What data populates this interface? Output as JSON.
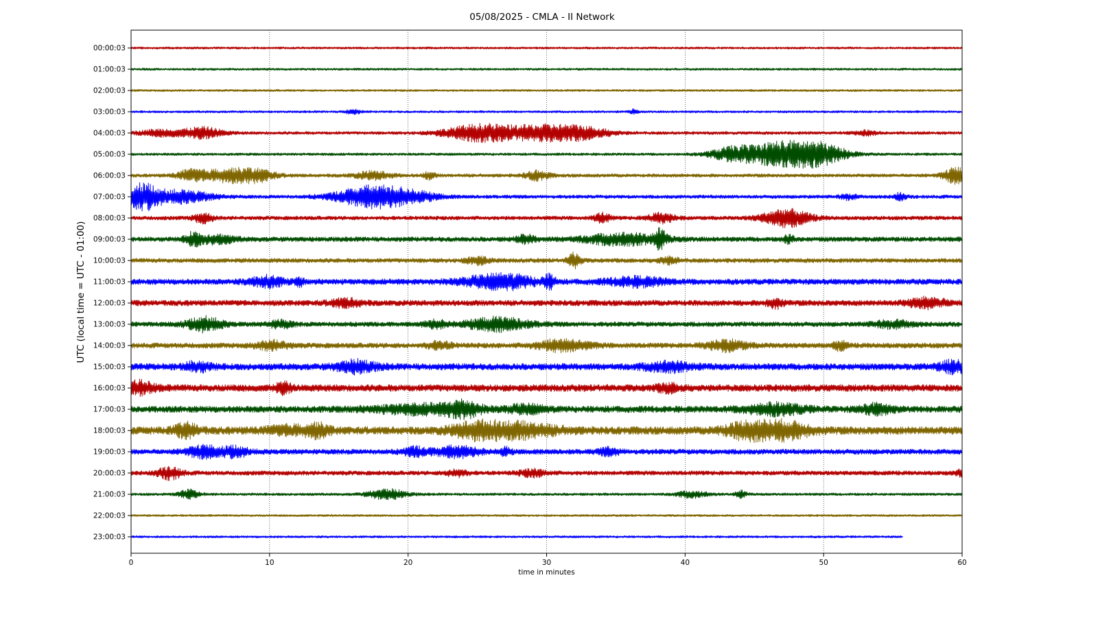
{
  "chart_data": {
    "type": "line",
    "title": "05/08/2025 - CMLA - II Network",
    "xlabel": "time in minutes",
    "ylabel": "UTC (local time = UTC - 01:00)",
    "xlim": [
      0,
      60
    ],
    "x_ticks": [
      0,
      10,
      20,
      30,
      40,
      50,
      60
    ],
    "x_tick_labels": [
      "0",
      "10",
      "20",
      "30",
      "40",
      "50",
      "60"
    ],
    "grid": "vertical dotted at x ticks",
    "series_colors": [
      "#b30000",
      "#004d00",
      "#806600",
      "#0000ff"
    ],
    "rows": [
      {
        "label": "00:00:03",
        "color": "#b30000",
        "end_minute": 60,
        "noise": 0.5,
        "events": []
      },
      {
        "label": "01:00:03",
        "color": "#004d00",
        "end_minute": 60,
        "noise": 0.5,
        "events": []
      },
      {
        "label": "02:00:03",
        "color": "#806600",
        "end_minute": 60,
        "noise": 0.5,
        "events": []
      },
      {
        "label": "03:00:03",
        "color": "#0000ff",
        "end_minute": 60,
        "noise": 0.5,
        "events": [
          [
            16,
            0.4,
            1.0
          ],
          [
            36.3,
            0.2,
            1.0
          ]
        ]
      },
      {
        "label": "04:00:03",
        "color": "#b30000",
        "end_minute": 60,
        "noise": 0.7,
        "events": [
          [
            2.2,
            1.2,
            1.4
          ],
          [
            5.2,
            1.0,
            2.4
          ],
          [
            25.2,
            1.8,
            3.7
          ],
          [
            29.5,
            1.7,
            3.0
          ],
          [
            32.5,
            1.5,
            2.5
          ],
          [
            53,
            0.6,
            1.0
          ]
        ]
      },
      {
        "label": "05:00:03",
        "color": "#004d00",
        "end_minute": 60,
        "noise": 0.6,
        "events": [
          [
            43.5,
            1.2,
            3.0
          ],
          [
            46.3,
            1.5,
            3.5
          ],
          [
            48.2,
            1.4,
            4.5
          ],
          [
            50.2,
            1.3,
            3.0
          ]
        ]
      },
      {
        "label": "06:00:03",
        "color": "#806600",
        "end_minute": 60,
        "noise": 0.8,
        "events": [
          [
            4.3,
            0.7,
            2.0
          ],
          [
            7.2,
            1.6,
            3.0
          ],
          [
            9.3,
            0.8,
            1.5
          ],
          [
            17.5,
            0.9,
            1.7
          ],
          [
            21.5,
            0.3,
            1.5
          ],
          [
            29.3,
            0.6,
            2.0
          ],
          [
            59.5,
            0.6,
            3.5
          ]
        ]
      },
      {
        "label": "07:00:03",
        "color": "#0000ff",
        "end_minute": 60,
        "noise": 0.8,
        "events": [
          [
            0.8,
            0.8,
            5.5
          ],
          [
            3.5,
            1.6,
            2.8
          ],
          [
            17.3,
            1.8,
            4.6
          ],
          [
            20.2,
            1.4,
            2.0
          ],
          [
            51.8,
            0.4,
            1.2
          ],
          [
            55.5,
            0.3,
            1.5
          ]
        ]
      },
      {
        "label": "08:00:03",
        "color": "#b30000",
        "end_minute": 60,
        "noise": 0.9,
        "events": [
          [
            5.2,
            0.5,
            2.0
          ],
          [
            34,
            0.4,
            2.0
          ],
          [
            38.3,
            0.7,
            2.0
          ],
          [
            47.3,
            1.2,
            3.8
          ]
        ]
      },
      {
        "label": "09:00:03",
        "color": "#004d00",
        "end_minute": 60,
        "noise": 1.1,
        "events": [
          [
            4.5,
            0.4,
            2.8
          ],
          [
            6.2,
            0.9,
            1.8
          ],
          [
            28.5,
            0.5,
            1.5
          ],
          [
            35.5,
            2.0,
            2.4
          ],
          [
            38.2,
            0.3,
            3.5
          ],
          [
            47.5,
            0.3,
            1.5
          ]
        ]
      },
      {
        "label": "10:00:03",
        "color": "#806600",
        "end_minute": 60,
        "noise": 1.0,
        "events": [
          [
            25,
            0.6,
            1.6
          ],
          [
            32,
            0.3,
            3.5
          ],
          [
            38.8,
            0.5,
            1.5
          ]
        ]
      },
      {
        "label": "11:00:03",
        "color": "#0000ff",
        "end_minute": 60,
        "noise": 1.3,
        "events": [
          [
            9.8,
            0.9,
            2.2
          ],
          [
            12.2,
            0.2,
            1.6
          ],
          [
            25.5,
            1.5,
            1.8
          ],
          [
            27.5,
            1.3,
            2.2
          ],
          [
            30.2,
            0.3,
            2.8
          ],
          [
            36.5,
            1.5,
            1.8
          ]
        ]
      },
      {
        "label": "12:00:03",
        "color": "#b30000",
        "end_minute": 60,
        "noise": 1.3,
        "events": [
          [
            15.5,
            0.8,
            1.6
          ],
          [
            46.5,
            0.4,
            2.0
          ],
          [
            57.5,
            1.0,
            2.0
          ]
        ]
      },
      {
        "label": "13:00:03",
        "color": "#004d00",
        "end_minute": 60,
        "noise": 1.1,
        "events": [
          [
            5.3,
            0.9,
            3.0
          ],
          [
            10.8,
            0.6,
            1.5
          ],
          [
            26.5,
            1.6,
            2.8
          ],
          [
            22,
            0.6,
            1.5
          ],
          [
            55,
            1.0,
            1.5
          ]
        ]
      },
      {
        "label": "14:00:03",
        "color": "#806600",
        "end_minute": 60,
        "noise": 1.2,
        "events": [
          [
            10.2,
            0.8,
            1.8
          ],
          [
            22.3,
            0.6,
            1.6
          ],
          [
            31.2,
            1.3,
            2.5
          ],
          [
            43,
            1.0,
            2.3
          ],
          [
            51.2,
            0.3,
            2.0
          ]
        ]
      },
      {
        "label": "15:00:03",
        "color": "#0000ff",
        "end_minute": 60,
        "noise": 1.5,
        "events": [
          [
            4.8,
            0.7,
            1.8
          ],
          [
            16.3,
            1.0,
            2.4
          ],
          [
            38.8,
            1.2,
            1.8
          ],
          [
            59.5,
            0.8,
            2.5
          ]
        ]
      },
      {
        "label": "16:00:03",
        "color": "#b30000",
        "end_minute": 60,
        "noise": 1.6,
        "events": [
          [
            0.5,
            0.8,
            2.6
          ],
          [
            11,
            0.4,
            2.0
          ],
          [
            38.8,
            0.6,
            1.5
          ]
        ]
      },
      {
        "label": "17:00:03",
        "color": "#004d00",
        "end_minute": 60,
        "noise": 1.5,
        "events": [
          [
            21,
            2.5,
            1.8
          ],
          [
            24,
            0.8,
            2.8
          ],
          [
            28.5,
            1.0,
            1.6
          ],
          [
            46.5,
            1.5,
            2.2
          ],
          [
            53.8,
            0.8,
            2.0
          ]
        ]
      },
      {
        "label": "18:00:03",
        "color": "#806600",
        "end_minute": 60,
        "noise": 1.8,
        "events": [
          [
            4,
            0.6,
            2.6
          ],
          [
            11.5,
            1.2,
            1.6
          ],
          [
            13.5,
            0.6,
            2.2
          ],
          [
            24.8,
            1.2,
            2.5
          ],
          [
            27.8,
            2.0,
            3.0
          ],
          [
            44.5,
            1.2,
            3.2
          ],
          [
            47.2,
            1.3,
            3.4
          ]
        ]
      },
      {
        "label": "19:00:03",
        "color": "#0000ff",
        "end_minute": 60,
        "noise": 1.2,
        "events": [
          [
            5.2,
            0.8,
            2.6
          ],
          [
            7.5,
            0.7,
            2.2
          ],
          [
            20.5,
            0.6,
            1.8
          ],
          [
            23.5,
            1.2,
            2.2
          ],
          [
            27,
            0.3,
            1.5
          ],
          [
            34.5,
            0.5,
            1.5
          ]
        ]
      },
      {
        "label": "20:00:03",
        "color": "#b30000",
        "end_minute": 60,
        "noise": 1.0,
        "events": [
          [
            2.8,
            0.6,
            2.6
          ],
          [
            23.5,
            0.5,
            1.5
          ],
          [
            29,
            0.7,
            1.5
          ],
          [
            60,
            0.3,
            1.5
          ]
        ]
      },
      {
        "label": "21:00:03",
        "color": "#004d00",
        "end_minute": 60,
        "noise": 0.6,
        "events": [
          [
            4.2,
            0.5,
            2.0
          ],
          [
            18.5,
            1.0,
            2.2
          ],
          [
            40.5,
            0.8,
            1.4
          ],
          [
            44,
            0.3,
            1.5
          ]
        ]
      },
      {
        "label": "22:00:03",
        "color": "#806600",
        "end_minute": 60,
        "noise": 0.5,
        "events": []
      },
      {
        "label": "23:00:03",
        "color": "#0000ff",
        "end_minute": 55.7,
        "noise": 0.5,
        "events": []
      }
    ]
  }
}
